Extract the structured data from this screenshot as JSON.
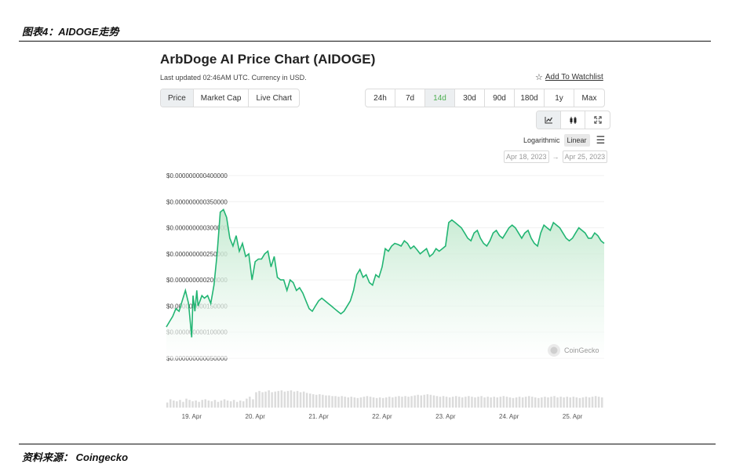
{
  "figure": {
    "title": "图表4：AIDOGE走势",
    "source": "资料来源： Coingecko"
  },
  "header": {
    "title": "ArbDoge AI Price Chart (AIDOGE)",
    "subtitle": "Last updated 02:46AM UTC. Currency in USD.",
    "watchlist_label": "Add To Watchlist"
  },
  "controls": {
    "types": [
      "Price",
      "Market Cap",
      "Live Chart"
    ],
    "active_type": "Price",
    "ranges": [
      "24h",
      "7d",
      "14d",
      "30d",
      "90d",
      "180d",
      "1y",
      "Max"
    ],
    "active_range": "14d",
    "view_icons": [
      "line-chart-icon",
      "candlestick-icon",
      "fullscreen-icon"
    ],
    "scale_log": "Logarithmic",
    "scale_linear": "Linear",
    "date_from": "Apr 18, 2023",
    "date_to": "Apr 25, 2023",
    "date_sep": "→"
  },
  "watermark": "CoinGecko",
  "colors": {
    "line": "#22b573",
    "fill": "#e3f5e8",
    "active_range": "#4caf50",
    "volume": "#dcdcdc"
  },
  "chart_data": {
    "type": "area",
    "title": "ArbDoge AI Price Chart (AIDOGE)",
    "y_tick_labels": [
      "$0.000000000400000",
      "$0.000000000350000",
      "$0.000000000300000",
      "$0.000000000250000",
      "$0.000000000200000",
      "$0.000000000150000",
      "$0.000000000100000",
      "$0.000000000050000"
    ],
    "y_tick_values": [
      0.4,
      0.35,
      0.3,
      0.25,
      0.2,
      0.15,
      0.1,
      0.05
    ],
    "y_unit_note": "values in units of 1e-9 USD",
    "ylim": [
      0.05,
      0.4
    ],
    "x_tick_labels": [
      "19. Apr",
      "20. Apr",
      "21. Apr",
      "22. Apr",
      "23. Apr",
      "24. Apr",
      "25. Apr"
    ],
    "x_tick_values": [
      19,
      20,
      21,
      22,
      23,
      24,
      25
    ],
    "xlim": [
      18.6,
      25.5
    ],
    "grid": true,
    "series": [
      {
        "x": [
          18.6,
          18.65,
          18.7,
          18.75,
          18.8,
          18.85,
          18.9,
          18.95,
          19.0,
          19.02,
          19.05,
          19.08,
          19.1,
          19.13,
          19.16,
          19.2,
          19.25,
          19.3,
          19.35,
          19.4,
          19.45,
          19.5,
          19.55,
          19.6,
          19.65,
          19.7,
          19.75,
          19.8,
          19.85,
          19.9,
          19.95,
          20.0,
          20.05,
          20.1,
          20.15,
          20.2,
          20.25,
          20.3,
          20.35,
          20.4,
          20.45,
          20.5,
          20.55,
          20.6,
          20.65,
          20.7,
          20.75,
          20.8,
          20.85,
          20.9,
          20.95,
          21.0,
          21.05,
          21.1,
          21.15,
          21.2,
          21.25,
          21.3,
          21.35,
          21.4,
          21.45,
          21.5,
          21.55,
          21.6,
          21.65,
          21.7,
          21.75,
          21.8,
          21.85,
          21.9,
          21.95,
          22.0,
          22.05,
          22.1,
          22.15,
          22.2,
          22.25,
          22.3,
          22.35,
          22.4,
          22.45,
          22.5,
          22.55,
          22.6,
          22.65,
          22.7,
          22.75,
          22.8,
          22.85,
          22.9,
          22.95,
          23.0,
          23.05,
          23.1,
          23.15,
          23.2,
          23.25,
          23.3,
          23.35,
          23.4,
          23.45,
          23.5,
          23.55,
          23.6,
          23.65,
          23.7,
          23.75,
          23.8,
          23.85,
          23.9,
          23.95,
          24.0,
          24.05,
          24.1,
          24.15,
          24.2,
          24.25,
          24.3,
          24.35,
          24.4,
          24.45,
          24.5,
          24.55,
          24.6,
          24.65,
          24.7,
          24.75,
          24.8,
          24.85,
          24.9,
          24.95,
          25.0,
          25.05,
          25.1,
          25.15,
          25.2,
          25.25,
          25.3,
          25.35,
          25.4,
          25.45,
          25.5
        ],
        "y": [
          0.11,
          0.12,
          0.13,
          0.145,
          0.14,
          0.16,
          0.18,
          0.155,
          0.09,
          0.17,
          0.14,
          0.18,
          0.15,
          0.16,
          0.17,
          0.165,
          0.17,
          0.155,
          0.19,
          0.25,
          0.33,
          0.335,
          0.32,
          0.28,
          0.265,
          0.285,
          0.255,
          0.27,
          0.245,
          0.25,
          0.2,
          0.235,
          0.24,
          0.24,
          0.25,
          0.255,
          0.225,
          0.245,
          0.205,
          0.2,
          0.2,
          0.18,
          0.2,
          0.195,
          0.18,
          0.185,
          0.175,
          0.16,
          0.145,
          0.14,
          0.15,
          0.16,
          0.165,
          0.16,
          0.155,
          0.15,
          0.145,
          0.14,
          0.135,
          0.14,
          0.15,
          0.16,
          0.18,
          0.21,
          0.22,
          0.205,
          0.21,
          0.195,
          0.19,
          0.21,
          0.205,
          0.225,
          0.26,
          0.255,
          0.265,
          0.27,
          0.268,
          0.265,
          0.275,
          0.27,
          0.26,
          0.265,
          0.258,
          0.25,
          0.255,
          0.26,
          0.245,
          0.25,
          0.26,
          0.255,
          0.26,
          0.265,
          0.31,
          0.315,
          0.31,
          0.305,
          0.3,
          0.29,
          0.28,
          0.275,
          0.29,
          0.295,
          0.28,
          0.27,
          0.265,
          0.275,
          0.29,
          0.295,
          0.285,
          0.28,
          0.29,
          0.3,
          0.305,
          0.3,
          0.29,
          0.28,
          0.29,
          0.295,
          0.28,
          0.27,
          0.265,
          0.29,
          0.305,
          0.3,
          0.295,
          0.31,
          0.305,
          0.3,
          0.29,
          0.28,
          0.275,
          0.28,
          0.29,
          0.3,
          0.295,
          0.29,
          0.28,
          0.28,
          0.29,
          0.285,
          0.275,
          0.27
        ]
      }
    ],
    "volume": [
      8,
      13,
      11,
      10,
      12,
      9,
      14,
      12,
      10,
      11,
      9,
      12,
      13,
      11,
      10,
      12,
      9,
      11,
      13,
      11,
      10,
      12,
      9,
      11,
      10,
      14,
      17,
      13,
      24,
      26,
      24,
      25,
      27,
      24,
      25,
      26,
      27,
      25,
      26,
      27,
      25,
      26,
      24,
      25,
      23,
      22,
      21,
      20,
      21,
      20,
      19,
      19,
      18,
      18,
      17,
      18,
      17,
      16,
      17,
      16,
      15,
      16,
      17,
      18,
      17,
      16,
      15,
      16,
      15,
      16,
      17,
      16,
      17,
      18,
      17,
      18,
      17,
      18,
      19,
      20,
      19,
      20,
      21,
      20,
      19,
      18,
      17,
      18,
      17,
      16,
      17,
      18,
      17,
      16,
      17,
      18,
      17,
      16,
      17,
      18,
      16,
      17,
      16,
      17,
      16,
      17,
      18,
      17,
      16,
      15,
      16,
      17,
      16,
      17,
      18,
      17,
      16,
      15,
      16,
      17,
      16,
      17,
      18,
      16,
      17,
      16,
      17,
      16,
      17,
      16,
      15,
      16,
      17,
      16,
      17,
      18,
      17,
      16
    ]
  }
}
